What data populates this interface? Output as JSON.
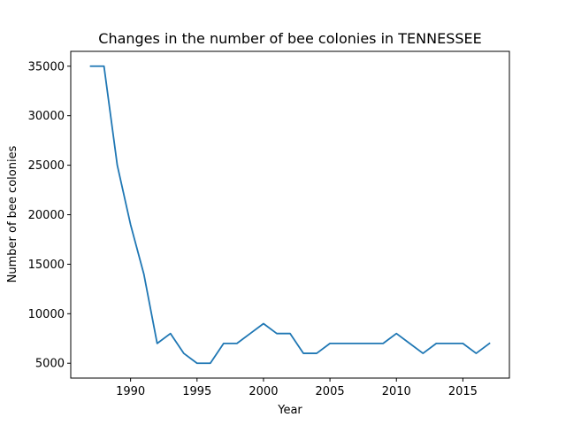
{
  "chart_data": {
    "type": "line",
    "title": "Changes in the number of bee colonies in TENNESSEE",
    "xlabel": "Year",
    "ylabel": "Number of bee colonies",
    "xlim": [
      1985.5,
      2018.5
    ],
    "ylim": [
      3500,
      36500
    ],
    "xticks": [
      1990,
      1995,
      2000,
      2005,
      2010,
      2015
    ],
    "yticks": [
      5000,
      10000,
      15000,
      20000,
      25000,
      30000,
      35000
    ],
    "grid": false,
    "line_color": "#1f77b4",
    "series": [
      {
        "x": [
          1987,
          1988,
          1989,
          1990,
          1991,
          1992,
          1993,
          1994,
          1995,
          1996,
          1997,
          1998,
          1999,
          2000,
          2001,
          2002,
          2003,
          2004,
          2005,
          2006,
          2007,
          2008,
          2009,
          2010,
          2011,
          2012,
          2013,
          2014,
          2015,
          2016,
          2017
        ],
        "values": [
          35000,
          35000,
          25000,
          19000,
          14000,
          7000,
          8000,
          6000,
          5000,
          5000,
          7000,
          7000,
          8000,
          9000,
          8000,
          8000,
          6000,
          6000,
          7000,
          7000,
          7000,
          7000,
          7000,
          8000,
          7000,
          6000,
          7000,
          7000,
          7000,
          6000,
          7000
        ]
      }
    ]
  }
}
